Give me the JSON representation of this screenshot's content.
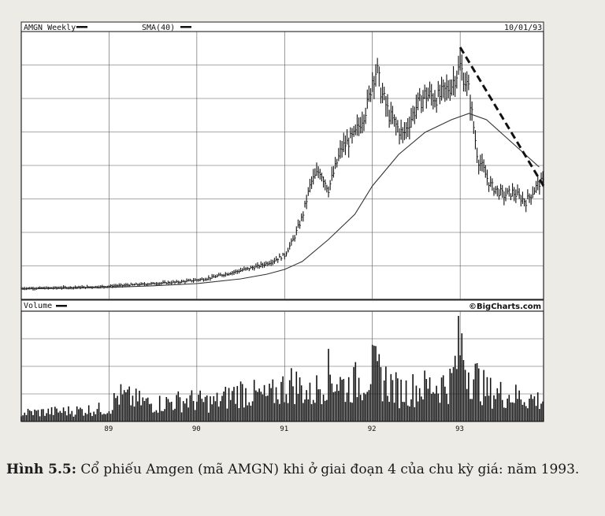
{
  "chart_data": {
    "type": "line",
    "header": {
      "symbol_label": "AMGN Weekly",
      "sma_label": "SMA(40)",
      "date": "10/01/93"
    },
    "volume_label": "Volume",
    "brand": "©BigCharts.com",
    "x_range": [
      1988.0,
      1993.95
    ],
    "x_ticks": [
      {
        "x": 1989,
        "label": "89"
      },
      {
        "x": 1990,
        "label": "90"
      },
      {
        "x": 1991,
        "label": "91"
      },
      {
        "x": 1992,
        "label": "92"
      },
      {
        "x": 1993,
        "label": "93"
      }
    ],
    "price_range": [
      0,
      85
    ],
    "series": [
      {
        "kind": "price_bars",
        "x": [
          1988.0,
          1988.3,
          1988.6,
          1988.9,
          1989.2,
          1989.5,
          1989.8,
          1990.1,
          1990.4,
          1990.7,
          1990.85,
          1991.0,
          1991.1,
          1991.2,
          1991.3,
          1991.4,
          1991.5,
          1991.65,
          1991.8,
          1991.95,
          1992.0,
          1992.05,
          1992.1,
          1992.2,
          1992.35,
          1992.5,
          1992.6,
          1992.75,
          1992.9,
          1993.0,
          1993.1,
          1993.2,
          1993.35,
          1993.5,
          1993.6,
          1993.75,
          1993.9
        ],
        "values": [
          3.5,
          3.6,
          3.8,
          4.0,
          4.5,
          5.0,
          5.5,
          6.5,
          8.5,
          10.5,
          12.0,
          14.0,
          19.0,
          26.0,
          37.0,
          41.0,
          35.0,
          48.0,
          52.0,
          62.0,
          70.0,
          73.0,
          66.0,
          58.0,
          52.0,
          61.0,
          65.0,
          64.0,
          68.0,
          74.0,
          66.0,
          45.0,
          36.0,
          33.0,
          34.0,
          31.0,
          37.0
        ]
      },
      {
        "kind": "sma",
        "x": [
          1988.0,
          1988.5,
          1989.0,
          1989.5,
          1990.0,
          1990.5,
          1990.8,
          1991.0,
          1991.2,
          1991.5,
          1991.8,
          1992.0,
          1992.3,
          1992.6,
          1992.9,
          1993.1,
          1993.3,
          1993.5,
          1993.7,
          1993.9
        ],
        "values": [
          3.3,
          3.5,
          3.8,
          4.3,
          5.0,
          6.5,
          8.0,
          9.5,
          12.0,
          19.0,
          27.0,
          36.0,
          46.0,
          53.0,
          57.0,
          59.0,
          57.0,
          52.0,
          47.0,
          42.0
        ]
      }
    ],
    "trendline": {
      "x": [
        1993.0,
        1993.95
      ],
      "values": [
        80.0,
        36.0
      ]
    },
    "volume": {
      "x": [
        1988.0,
        1988.5,
        1989.0,
        1989.1,
        1989.5,
        1989.9,
        1990.2,
        1990.5,
        1990.8,
        1991.0,
        1991.1,
        1991.3,
        1991.5,
        1991.7,
        1991.9,
        1992.0,
        1992.3,
        1992.6,
        1992.9,
        1993.0,
        1993.1,
        1993.3,
        1993.6,
        1993.9
      ],
      "values": [
        10,
        12,
        15,
        30,
        20,
        25,
        22,
        35,
        28,
        40,
        45,
        30,
        55,
        40,
        50,
        60,
        35,
        40,
        45,
        90,
        60,
        35,
        30,
        25
      ]
    }
  },
  "caption": {
    "figure_label": "Hình 5.5:",
    "text": " Cổ phiếu Amgen (mã AMGN) khi ở giai đoạn 4 của chu kỳ giá: năm 1993."
  }
}
